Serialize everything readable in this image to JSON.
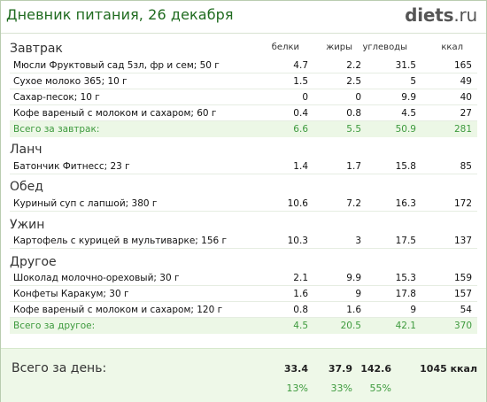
{
  "header": {
    "title": "Дневник питания, 26 декабря",
    "logo_main": "diets",
    "logo_domain": ".ru"
  },
  "columns": {
    "protein": "белки",
    "fat": "жиры",
    "carbs": "углеводы",
    "kcal": "ккал"
  },
  "sections": [
    {
      "name": "Завтрак",
      "items": [
        {
          "name": "Мюсли Фруктовый сад 5зл, фр и сем; 50 г",
          "p": "4.7",
          "f": "2.2",
          "c": "31.5",
          "k": "165"
        },
        {
          "name": "Сухое молоко 365; 10 г",
          "p": "1.5",
          "f": "2.5",
          "c": "5",
          "k": "49"
        },
        {
          "name": "Сахар-песок; 10 г",
          "p": "0",
          "f": "0",
          "c": "9.9",
          "k": "40"
        },
        {
          "name": "Кофе вареный с молоком и сахаром; 60 г",
          "p": "0.4",
          "f": "0.8",
          "c": "4.5",
          "k": "27"
        }
      ],
      "total": {
        "name": "Всего за завтрак:",
        "p": "6.6",
        "f": "5.5",
        "c": "50.9",
        "k": "281"
      }
    },
    {
      "name": "Ланч",
      "items": [
        {
          "name": "Батончик Фитнесс; 23 г",
          "p": "1.4",
          "f": "1.7",
          "c": "15.8",
          "k": "85"
        }
      ]
    },
    {
      "name": "Обед",
      "items": [
        {
          "name": "Куриный суп с лапшой; 380 г",
          "p": "10.6",
          "f": "7.2",
          "c": "16.3",
          "k": "172"
        }
      ]
    },
    {
      "name": "Ужин",
      "items": [
        {
          "name": "Картофель с курицей в мультиварке; 156 г",
          "p": "10.3",
          "f": "3",
          "c": "17.5",
          "k": "137"
        }
      ]
    },
    {
      "name": "Другое",
      "items": [
        {
          "name": "Шоколад молочно-ореховый; 30 г",
          "p": "2.1",
          "f": "9.9",
          "c": "15.3",
          "k": "159"
        },
        {
          "name": "Конфеты Каракум; 30 г",
          "p": "1.6",
          "f": "9",
          "c": "17.8",
          "k": "157"
        },
        {
          "name": "Кофе вареный с молоком и сахаром; 120 г",
          "p": "0.8",
          "f": "1.6",
          "c": "9",
          "k": "54"
        }
      ],
      "total": {
        "name": "Всего за другое:",
        "p": "4.5",
        "f": "20.5",
        "c": "42.1",
        "k": "370"
      }
    }
  ],
  "day_total": {
    "label": "Всего за день:",
    "p": "33.4",
    "f": "37.9",
    "c": "142.6",
    "k": "1045 ккал",
    "p_pct": "13%",
    "f_pct": "33%",
    "c_pct": "55%"
  }
}
